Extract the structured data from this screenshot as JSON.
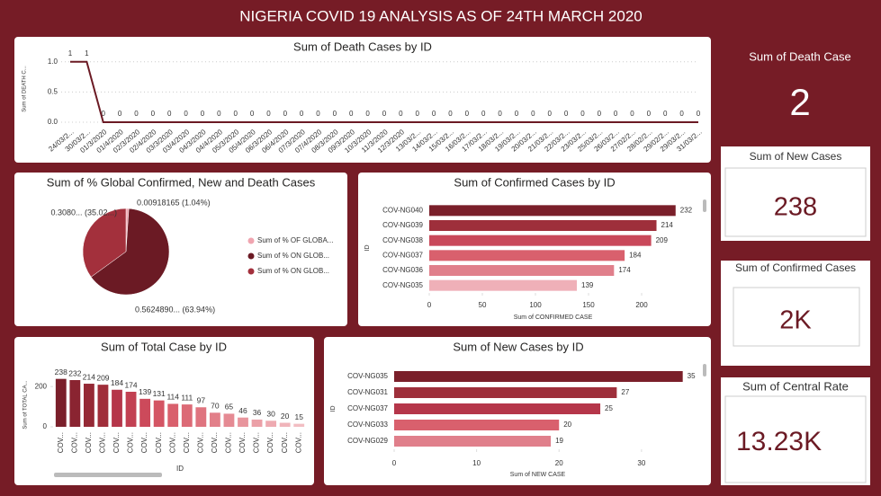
{
  "title": "NIGERIA COVID 19 ANALYSIS AS OF 24TH MARCH 2020",
  "chart_data": [
    {
      "type": "line",
      "title": "Sum of Death Cases by ID",
      "y_label": "Sum of DEATH C...",
      "categories": [
        "24/03/2...",
        "30/03/2...",
        "01/3/2020",
        "01/4/2020",
        "02/3/2020",
        "02/4/2020",
        "03/3/2020",
        "03/4/2020",
        "04/3/2020",
        "04/4/2020",
        "05/3/2020",
        "05/4/2020",
        "06/3/2020",
        "06/4/2020",
        "07/3/2020",
        "07/4/2020",
        "08/3/2020",
        "09/3/2020",
        "10/3/2020",
        "11/3/2020",
        "12/3/2020",
        "13/03/2...",
        "14/03/2...",
        "15/03/2...",
        "16/03/2...",
        "17/03/2...",
        "18/03/2...",
        "19/03/2...",
        "20/03/2...",
        "21/03/2...",
        "22/03/2...",
        "23/03/2...",
        "25/03/2...",
        "26/03/2...",
        "27/02/2...",
        "28/02/2...",
        "29/02/2...",
        "29/03/2...",
        "31/03/2..."
      ],
      "values": [
        1,
        1,
        0,
        0,
        0,
        0,
        0,
        0,
        0,
        0,
        0,
        0,
        0,
        0,
        0,
        0,
        0,
        0,
        0,
        0,
        0,
        0,
        0,
        0,
        0,
        0,
        0,
        0,
        0,
        0,
        0,
        0,
        0,
        0,
        0,
        0,
        0,
        0,
        0
      ],
      "color": "#6b1a24",
      "ylim": [
        0,
        1.1
      ],
      "yticks": [
        {
          "value": 0,
          "label": "0.0"
        },
        {
          "value": 0.5,
          "label": "0.5"
        },
        {
          "value": 1,
          "label": "1.0"
        }
      ],
      "grid": true
    },
    {
      "type": "pie",
      "title": "Sum of % Global Confirmed, New and Death Cases",
      "labels": [
        "Sum of % OF GLOBA...",
        "Sum of % ON GLOB...",
        "Sum of % ON GLOB..."
      ],
      "values": [
        0.00918165,
        0.562489,
        0.308
      ],
      "value_labels": [
        "0.00918165 (1.04%)",
        "0.5624890... (63.94%)",
        "0.3080... (35.02...)"
      ],
      "colors": [
        "#f0a5b0",
        "#6b1a24",
        "#a3303c"
      ]
    },
    {
      "type": "bar",
      "orientation": "horizontal",
      "title": "Sum of Confirmed Cases by ID",
      "x_label": "Sum of CONFIRMED CASE",
      "y_label": "ID",
      "categories": [
        "COV-NG040",
        "COV-NG039",
        "COV-NG038",
        "COV-NG037",
        "COV-NG036",
        "COV-NG035"
      ],
      "values": [
        232,
        214,
        209,
        184,
        174,
        139
      ],
      "colors": [
        "#7a1f2a",
        "#9e2f3b",
        "#c9485a",
        "#d9606d",
        "#e07f8b",
        "#efb0b8"
      ],
      "xlim": [
        0,
        250
      ],
      "xticks": [
        0,
        50,
        100,
        150,
        200
      ]
    },
    {
      "type": "bar",
      "orientation": "vertical",
      "title": "Sum of Total Case by ID",
      "x_label": "ID",
      "y_label": "Sum of TOTAL CA...",
      "categories": [
        "COV...",
        "COV...",
        "COV...",
        "COV...",
        "COV...",
        "COV...",
        "COV...",
        "COV...",
        "COV...",
        "COV...",
        "COV...",
        "COV...",
        "COV...",
        "COV...",
        "COV...",
        "COV...",
        "COV...",
        "COV..."
      ],
      "values": [
        238,
        232,
        214,
        209,
        184,
        174,
        139,
        131,
        114,
        111,
        97,
        70,
        65,
        46,
        36,
        30,
        20,
        15
      ],
      "colors": [
        "#7a1f2a",
        "#8a2431",
        "#952935",
        "#a02e3a",
        "#b5364a",
        "#c24052",
        "#cc4a5b",
        "#d45564",
        "#d9606d",
        "#dc6a76",
        "#df747f",
        "#e27f89",
        "#e58a93",
        "#e8959d",
        "#eba0a7",
        "#eeaab1",
        "#f0b4ba",
        "#f2bec3"
      ],
      "ylim": [
        0,
        290
      ],
      "yticks": [
        0,
        200
      ]
    },
    {
      "type": "bar",
      "orientation": "horizontal",
      "title": "Sum of New Cases by ID",
      "x_label": "Sum of NEW CASE",
      "y_label": "ID",
      "categories": [
        "COV-NG035",
        "COV-NG031",
        "COV-NG037",
        "COV-NG033",
        "COV-NG029"
      ],
      "values": [
        35,
        27,
        25,
        20,
        19
      ],
      "colors": [
        "#7a1f2a",
        "#9e2f3b",
        "#b5364a",
        "#d9606d",
        "#e07f8b"
      ],
      "xlim": [
        0,
        37
      ],
      "xticks": [
        0,
        10,
        20,
        30
      ]
    }
  ],
  "cards": [
    {
      "title": "Sum of Death Case",
      "value": 2
    },
    {
      "title": "Sum of New Cases",
      "value": 238
    },
    {
      "title": "Sum of Confirmed Cases",
      "value": "2K"
    },
    {
      "title": "Sum of Central Rate",
      "value": "13.23K"
    }
  ]
}
